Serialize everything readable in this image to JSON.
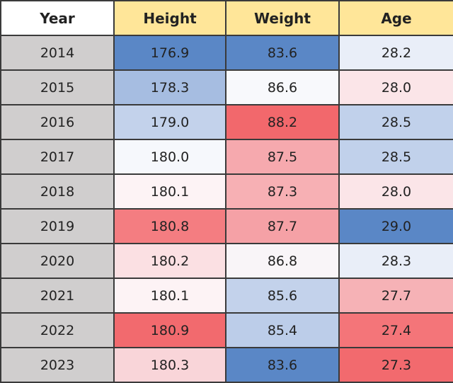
{
  "table": {
    "header": [
      "Year",
      "Height",
      "Weight",
      "Age"
    ],
    "rows": [
      [
        "2014",
        "176.9",
        "83.6",
        "28.2"
      ],
      [
        "2015",
        "178.3",
        "86.6",
        "28.0"
      ],
      [
        "2016",
        "179.0",
        "88.2",
        "28.5"
      ],
      [
        "2017",
        "180.0",
        "87.5",
        "28.5"
      ],
      [
        "2018",
        "180.1",
        "87.3",
        "28.0"
      ],
      [
        "2019",
        "180.8",
        "87.7",
        "29.0"
      ],
      [
        "2020",
        "180.2",
        "86.8",
        "28.3"
      ],
      [
        "2021",
        "180.1",
        "85.6",
        "27.7"
      ],
      [
        "2022",
        "180.9",
        "85.4",
        "27.4"
      ],
      [
        "2023",
        "180.3",
        "83.6",
        "27.3"
      ]
    ]
  }
}
